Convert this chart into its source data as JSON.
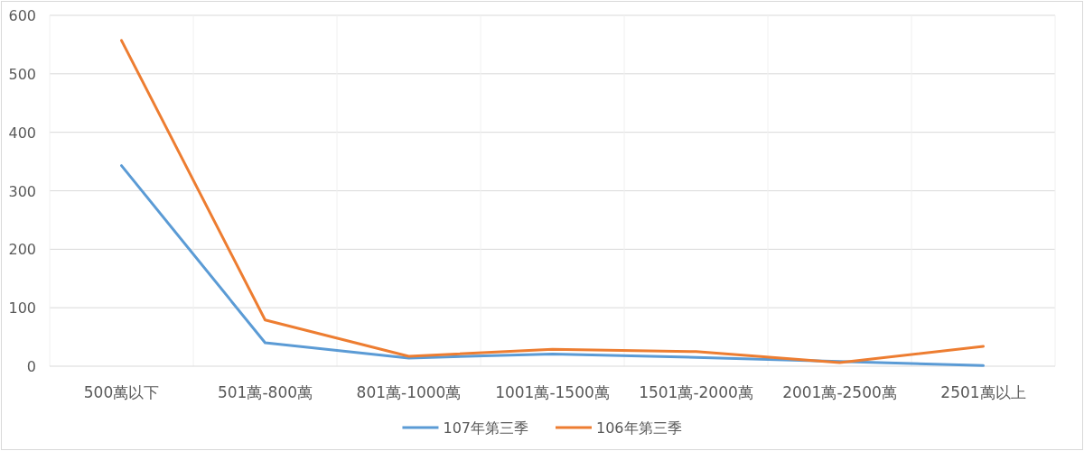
{
  "chart_data": {
    "type": "line",
    "categories": [
      "500萬以下",
      "501萬-800萬",
      "801萬-1000萬",
      "1001萬-1500萬",
      "1501萬-2000萬",
      "2001萬-2500萬",
      "2501萬以上"
    ],
    "series": [
      {
        "name": "107年第三季",
        "color": "#5b9bd5",
        "values": [
          343,
          40,
          14,
          21,
          15,
          8,
          1
        ]
      },
      {
        "name": "106年第三季",
        "color": "#ed7d31",
        "values": [
          557,
          79,
          17,
          29,
          25,
          6,
          34
        ]
      }
    ],
    "ylim": [
      0,
      600
    ],
    "yticks": [
      0,
      100,
      200,
      300,
      400,
      500,
      600
    ],
    "grid": true,
    "legend": "bottom",
    "marker": "none",
    "line_style": "solid"
  }
}
